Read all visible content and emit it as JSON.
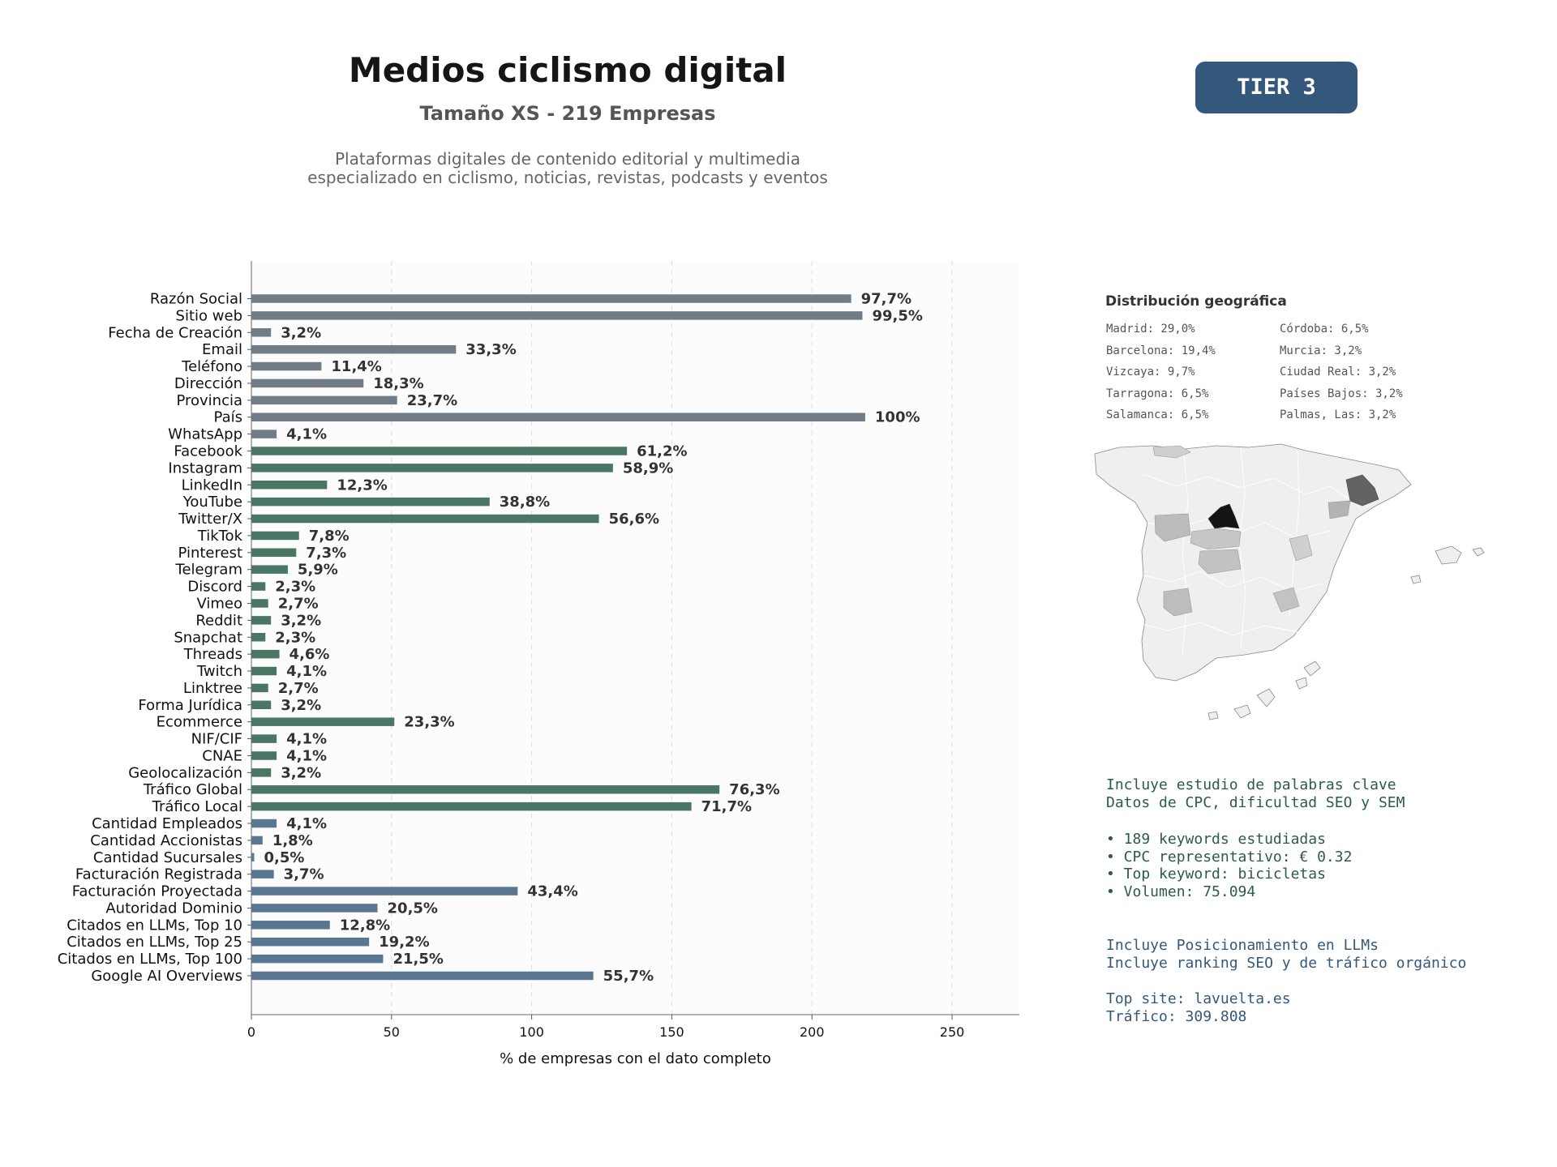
{
  "header": {
    "title": "Medios ciclismo digital",
    "subtitle": "Tamaño XS - 219 Empresas",
    "description_line1": "Plataformas digitales de contenido editorial y multimedia",
    "description_line2": "especializado en ciclismo, noticias, revistas, podcasts y eventos",
    "tier": "TIER 3"
  },
  "chart_data": {
    "type": "bar",
    "orientation": "horizontal",
    "xlabel": "% de empresas con el dato completo",
    "xlim": [
      0,
      274
    ],
    "xticks": [
      0,
      50,
      100,
      150,
      200,
      250
    ],
    "grid": "vertical dashed",
    "categories": [
      "Razón Social",
      "Sitio web",
      "Fecha de Creación",
      "Email",
      "Teléfono",
      "Dirección",
      "Provincia",
      "País",
      "WhatsApp",
      "Facebook",
      "Instagram",
      "LinkedIn",
      "YouTube",
      "Twitter/X",
      "TikTok",
      "Pinterest",
      "Telegram",
      "Discord",
      "Vimeo",
      "Reddit",
      "Snapchat",
      "Threads",
      "Twitch",
      "Linktree",
      "Forma Jurídica",
      "Ecommerce",
      "NIF/CIF",
      "CNAE",
      "Geolocalización",
      "Tráfico Global",
      "Tráfico Local",
      "Cantidad Empleados",
      "Cantidad Accionistas",
      "Cantidad Sucursales",
      "Facturación Registrada",
      "Facturación Proyectada",
      "Autoridad Dominio",
      "Citados en LLMs, Top 10",
      "Citados en LLMs, Top 25",
      "Citados en LLMs, Top 100",
      "Google AI Overviews"
    ],
    "values": [
      214,
      218,
      7,
      73,
      25,
      40,
      52,
      219,
      9,
      134,
      129,
      27,
      85,
      124,
      17,
      16,
      13,
      5,
      6,
      7,
      5,
      10,
      9,
      6,
      7,
      51,
      9,
      9,
      7,
      167,
      157,
      9,
      4,
      1,
      8,
      95,
      45,
      28,
      42,
      47,
      122
    ],
    "labels": [
      "97,7%",
      "99,5%",
      "3,2%",
      "33,3%",
      "11,4%",
      "18,3%",
      "23,7%",
      "100%",
      "4,1%",
      "61,2%",
      "58,9%",
      "12,3%",
      "38,8%",
      "56,6%",
      "7,8%",
      "7,3%",
      "5,9%",
      "2,3%",
      "2,7%",
      "3,2%",
      "2,3%",
      "4,6%",
      "4,1%",
      "2,7%",
      "3,2%",
      "23,3%",
      "4,1%",
      "4,1%",
      "3,2%",
      "76,3%",
      "71,7%",
      "4,1%",
      "1,8%",
      "0,5%",
      "3,7%",
      "43,4%",
      "20,5%",
      "12,8%",
      "19,2%",
      "21,5%",
      "55,7%"
    ],
    "groups": [
      "grey",
      "grey",
      "grey",
      "grey",
      "grey",
      "grey",
      "grey",
      "grey",
      "grey",
      "green",
      "green",
      "green",
      "green",
      "green",
      "green",
      "green",
      "green",
      "green",
      "green",
      "green",
      "green",
      "green",
      "green",
      "green",
      "green",
      "green",
      "green",
      "green",
      "green",
      "green",
      "green",
      "blue",
      "blue",
      "blue",
      "blue",
      "blue",
      "blue",
      "blue",
      "blue",
      "blue",
      "blue"
    ],
    "colors": {
      "grey": "#717c87",
      "green": "#4a7764",
      "blue": "#5a7690"
    }
  },
  "geo": {
    "title": "Distribución geográfica",
    "left": [
      "Madrid: 29,0%",
      "Barcelona: 19,4%",
      "Vizcaya: 9,7%",
      "Tarragona: 6,5%",
      "Salamanca: 6,5%"
    ],
    "right": [
      "Córdoba: 6,5%",
      "Murcia: 3,2%",
      "Ciudad Real: 3,2%",
      "Países Bajos: 3,2%",
      "Palmas, Las: 3,2%"
    ]
  },
  "info": {
    "kw_line1": "Incluye estudio de palabras clave",
    "kw_line2": "Datos de CPC, dificultad SEO y SEM",
    "kw_b1": "• 189 keywords estudiadas",
    "kw_b2": "• CPC representativo: € 0.32",
    "kw_b3": "• Top keyword: bicicletas",
    "kw_b4": "• Volumen: 75.094",
    "llm_line1": "Incluye Posicionamiento en LLMs",
    "llm_line2": "Incluye ranking SEO y de tráfico orgánico",
    "top_site": "Top site: lavuelta.es",
    "traffic": "Tráfico: 309.808"
  }
}
